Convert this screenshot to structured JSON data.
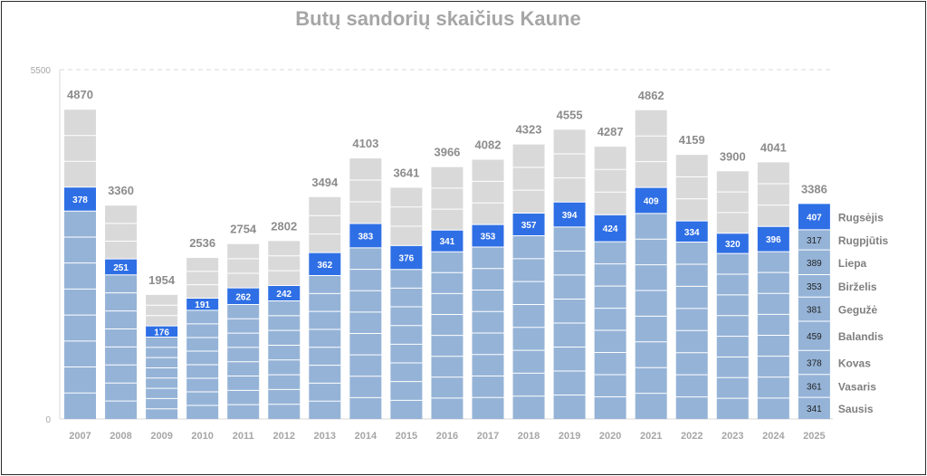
{
  "chart_data": {
    "type": "bar",
    "stacked": true,
    "title": "Butų sandorių skaičius Kaune",
    "xlabel": "",
    "ylabel": "",
    "ylim": [
      0,
      5500
    ],
    "yticks": [
      "0",
      "5500"
    ],
    "categories": [
      "2007",
      "2008",
      "2009",
      "2010",
      "2011",
      "2012",
      "2013",
      "2014",
      "2015",
      "2016",
      "2017",
      "2018",
      "2019",
      "2020",
      "2021",
      "2022",
      "2023",
      "2024",
      "2025"
    ],
    "totals": [
      4870,
      3360,
      1954,
      2536,
      2754,
      2802,
      3494,
      4103,
      3641,
      3966,
      4082,
      4323,
      4555,
      4287,
      4862,
      4159,
      3900,
      4041,
      3386
    ],
    "september_values": [
      378,
      251,
      176,
      191,
      262,
      242,
      362,
      383,
      376,
      341,
      353,
      357,
      394,
      424,
      409,
      334,
      320,
      396,
      407
    ],
    "months_2025": [
      {
        "name": "Sausis",
        "value": 341
      },
      {
        "name": "Vasaris",
        "value": 361
      },
      {
        "name": "Kovas",
        "value": 378
      },
      {
        "name": "Balandis",
        "value": 459
      },
      {
        "name": "Gegužė",
        "value": 381
      },
      {
        "name": "Birželis",
        "value": 353
      },
      {
        "name": "Liepa",
        "value": 389
      },
      {
        "name": "Rugpjūtis",
        "value": 317
      },
      {
        "name": "Rugsėjis",
        "value": 407
      }
    ],
    "colors": {
      "jan_aug": "#95b3d7",
      "september": "#2f6fe5",
      "oct_dec": "#d9d9d9",
      "title": "#a6a6a6",
      "axis_text": "#a6a6a6",
      "total_labels": "#8c8c8c",
      "month_labels": "#7f7f7f"
    },
    "grid": false,
    "reference_line": "dashed at 5500"
  }
}
